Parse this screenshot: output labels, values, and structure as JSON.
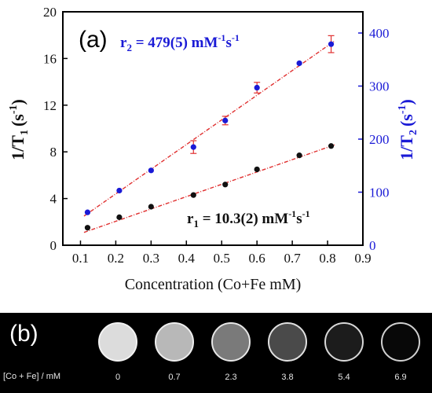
{
  "chart_data": {
    "type": "scatter",
    "panel_label": "(a)",
    "xlabel": "Concentration (Co+Fe mM)",
    "ylabel_left": {
      "base": "1/T",
      "sub": "1",
      "paren": "(s",
      "sup": "-1",
      "close": ")"
    },
    "ylabel_right": {
      "base": "1/T",
      "sub": "2",
      "paren": "(s",
      "sup": "-1",
      "close": ")"
    },
    "xlim": [
      0.05,
      0.9
    ],
    "ylim_left": [
      0,
      20
    ],
    "ylim_right": [
      0,
      440
    ],
    "x_ticks": [
      "0.1",
      "0.2",
      "0.3",
      "0.4",
      "0.5",
      "0.6",
      "0.7",
      "0.8",
      "0.9"
    ],
    "y_ticks_left": [
      "0",
      "4",
      "8",
      "12",
      "16",
      "20"
    ],
    "y_ticks_right": [
      "0",
      "100",
      "200",
      "300",
      "400"
    ],
    "annotations": {
      "r2": {
        "prefix": "r",
        "sub": "2",
        "value": " = 479(5) mM",
        "sup1": "-1",
        "mid": "s",
        "sup2": "-1",
        "color": "#1a1ad6"
      },
      "r1": {
        "prefix": "r",
        "sub": "1",
        "value": " = 10.3(2) mM",
        "sup1": "-1",
        "mid": "s",
        "sup2": "-1",
        "color": "#111111"
      }
    },
    "series": [
      {
        "axis": "left",
        "color": "#111111",
        "x": [
          0.12,
          0.21,
          0.3,
          0.42,
          0.51,
          0.6,
          0.72,
          0.81
        ],
        "y": [
          1.5,
          2.4,
          3.3,
          4.3,
          5.2,
          6.5,
          7.7,
          8.5
        ],
        "fit": {
          "x": [
            0.11,
            0.82
          ],
          "y": [
            1.1,
            8.6
          ]
        }
      },
      {
        "axis": "right",
        "color": "#1a1ad6",
        "x": [
          0.12,
          0.21,
          0.3,
          0.42,
          0.51,
          0.6,
          0.72,
          0.81
        ],
        "y": [
          62,
          103,
          141,
          185,
          235,
          297,
          343,
          379
        ],
        "err": [
          0,
          0,
          0,
          12,
          8,
          10,
          0,
          16
        ],
        "err_color": "#e03030",
        "fit": {
          "x": [
            0.11,
            0.82
          ],
          "y": [
            55,
            385
          ]
        }
      }
    ]
  },
  "panel_b": {
    "label": "(b)",
    "row_label": "[Co + Fe] / mM",
    "samples": [
      {
        "conc": "0",
        "fill": "#dcdcdc",
        "ring": "#f2f2f2"
      },
      {
        "conc": "0.7",
        "fill": "#b8b8b8",
        "ring": "#eeeeee"
      },
      {
        "conc": "2.3",
        "fill": "#7a7a7a",
        "ring": "#e6e6e6"
      },
      {
        "conc": "3.8",
        "fill": "#4a4a4a",
        "ring": "#e0e0e0"
      },
      {
        "conc": "5.4",
        "fill": "#1c1c1c",
        "ring": "#d8d8d8"
      },
      {
        "conc": "6.9",
        "fill": "#080808",
        "ring": "#d0d0d0"
      }
    ]
  }
}
